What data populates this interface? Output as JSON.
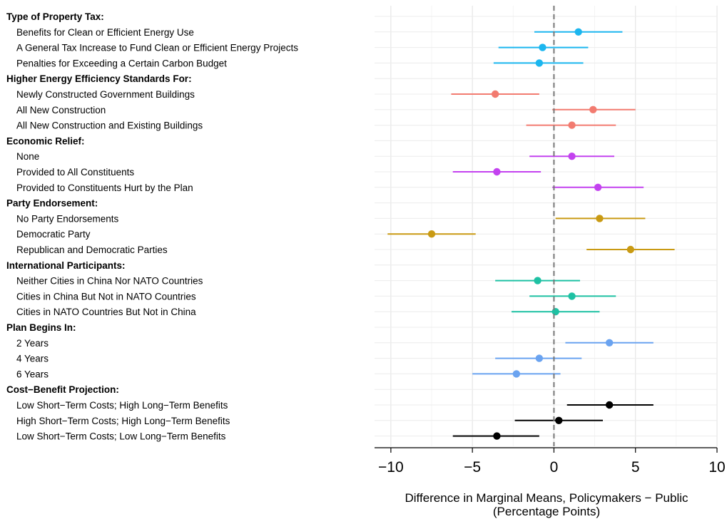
{
  "chart_data": {
    "type": "scatter",
    "subtype": "coefficient-plot",
    "xlabel": [
      "Difference in Marginal Means, Policymakers − Public",
      "(Percentage Points)"
    ],
    "xlim": [
      -11,
      10
    ],
    "xticks": [
      -10,
      -5,
      0,
      5,
      10
    ],
    "xtick_labels": [
      "−10",
      "−5",
      "0",
      "5",
      "10"
    ],
    "reference_line": 0,
    "grid": true,
    "groups": [
      {
        "header": "Type of Property Tax:",
        "color": "#1BB6EF",
        "items": [
          {
            "label": "Benefits for Clean or Efficient Energy Use",
            "est": 1.5,
            "lo": -1.2,
            "hi": 4.2
          },
          {
            "label": "A General Tax Increase to Fund Clean or Efficient Energy Projects",
            "est": -0.7,
            "lo": -3.4,
            "hi": 2.1
          },
          {
            "label": "Penalties for Exceeding a Certain Carbon Budget",
            "est": -0.9,
            "lo": -3.7,
            "hi": 1.8
          }
        ]
      },
      {
        "header": "Higher Energy Efficiency Standards For:",
        "color": "#F27B70",
        "items": [
          {
            "label": "Newly Constructed Government Buildings",
            "est": -3.6,
            "lo": -6.3,
            "hi": -0.9
          },
          {
            "label": "All New Construction",
            "est": 2.4,
            "lo": -0.1,
            "hi": 5.0
          },
          {
            "label": "All New Construction and Existing Buildings",
            "est": 1.1,
            "lo": -1.7,
            "hi": 3.8
          }
        ]
      },
      {
        "header": "Economic Relief:",
        "color": "#C342EF",
        "items": [
          {
            "label": "None",
            "est": 1.1,
            "lo": -1.5,
            "hi": 3.7
          },
          {
            "label": "Provided to All Constituents",
            "est": -3.5,
            "lo": -6.2,
            "hi": -0.8
          },
          {
            "label": "Provided to Constituents Hurt by the Plan",
            "est": 2.7,
            "lo": -0.1,
            "hi": 5.5
          }
        ]
      },
      {
        "header": "Party Endorsement:",
        "color": "#C99A13",
        "items": [
          {
            "label": "No Party Endorsements",
            "est": 2.8,
            "lo": 0.1,
            "hi": 5.6
          },
          {
            "label": "Democratic Party",
            "est": -7.5,
            "lo": -10.2,
            "hi": -4.8
          },
          {
            "label": "Republican and Democratic Parties",
            "est": 4.7,
            "lo": 2.0,
            "hi": 7.4
          }
        ]
      },
      {
        "header": "International Participants:",
        "color": "#1EC1A3",
        "items": [
          {
            "label": "Neither Cities in China Nor NATO Countries",
            "est": -1.0,
            "lo": -3.6,
            "hi": 1.6
          },
          {
            "label": "Cities in China But Not in NATO Countries",
            "est": 1.1,
            "lo": -1.5,
            "hi": 3.8
          },
          {
            "label": "Cities in NATO Countries But Not in China",
            "est": 0.1,
            "lo": -2.6,
            "hi": 2.8
          }
        ]
      },
      {
        "header": "Plan Begins In:",
        "color": "#6AA3F0",
        "items": [
          {
            "label": "2 Years",
            "est": 3.4,
            "lo": 0.7,
            "hi": 6.1
          },
          {
            "label": "4 Years",
            "est": -0.9,
            "lo": -3.6,
            "hi": 1.7
          },
          {
            "label": "6 Years",
            "est": -2.3,
            "lo": -5.0,
            "hi": 0.4
          }
        ]
      },
      {
        "header": "Cost−Benefit Projection:",
        "color": "#000000",
        "items": [
          {
            "label": "Low Short−Term Costs; High Long−Term Benefits",
            "est": 3.4,
            "lo": 0.8,
            "hi": 6.1
          },
          {
            "label": "High Short−Term Costs; High Long−Term Benefits",
            "est": 0.3,
            "lo": -2.4,
            "hi": 3.0
          },
          {
            "label": "Low Short−Term Costs; Low Long−Term Benefits",
            "est": -3.5,
            "lo": -6.2,
            "hi": -0.9
          }
        ]
      }
    ]
  }
}
